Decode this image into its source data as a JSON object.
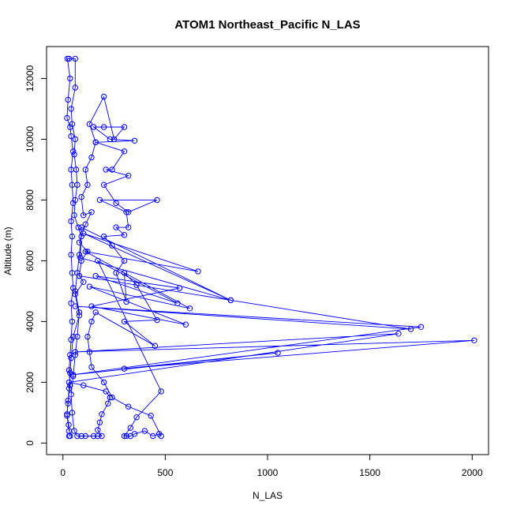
{
  "chart_data": {
    "type": "line",
    "title": "ATOM1 Northeast_Pacific N_LAS",
    "xlabel": "N_LAS",
    "ylabel": "Altitude (m)",
    "xlim": [
      -80,
      2080
    ],
    "ylim": [
      -380,
      13050
    ],
    "x_ticks": [
      0,
      500,
      1000,
      1500,
      2000
    ],
    "x_tick_labels": [
      "0",
      "500",
      "1000",
      "1500",
      "2000"
    ],
    "y_ticks": [
      0,
      2000,
      4000,
      6000,
      8000,
      10000,
      12000
    ],
    "y_tick_labels": [
      "0",
      "2000",
      "4000",
      "6000",
      "8000",
      "10000",
      "12000"
    ],
    "grid": false,
    "series": [
      {
        "color": "#0000ff",
        "marker": "open-circle",
        "points": [
          [
            30,
            230
          ],
          [
            35,
            230
          ],
          [
            28,
            600
          ],
          [
            20,
            950
          ],
          [
            25,
            1400
          ],
          [
            35,
            1900
          ],
          [
            30,
            2400
          ],
          [
            35,
            2900
          ],
          [
            40,
            3400
          ],
          [
            45,
            4000
          ],
          [
            40,
            4600
          ],
          [
            50,
            5100
          ],
          [
            45,
            5600
          ],
          [
            40,
            6200
          ],
          [
            45,
            6800
          ],
          [
            40,
            7300
          ],
          [
            50,
            7900
          ],
          [
            45,
            8500
          ],
          [
            40,
            9000
          ],
          [
            50,
            9600
          ],
          [
            40,
            10100
          ],
          [
            35,
            10400
          ],
          [
            20,
            10700
          ],
          [
            25,
            11300
          ],
          [
            35,
            12000
          ],
          [
            22,
            12650
          ],
          [
            30,
            12650
          ],
          [
            60,
            12650
          ],
          [
            60,
            11700
          ],
          [
            40,
            11000
          ],
          [
            45,
            10500
          ],
          [
            60,
            10000
          ],
          [
            55,
            9500
          ],
          [
            65,
            9000
          ],
          [
            70,
            8500
          ],
          [
            60,
            8000
          ],
          [
            55,
            7500
          ],
          [
            75,
            7100
          ],
          [
            90,
            6800
          ],
          [
            80,
            6200
          ],
          [
            70,
            5600
          ],
          [
            60,
            5000
          ],
          [
            80,
            4300
          ],
          [
            70,
            3500
          ],
          [
            60,
            2900
          ],
          [
            50,
            2200
          ],
          [
            40,
            1600
          ],
          [
            45,
            1000
          ],
          [
            55,
            400
          ],
          [
            70,
            230
          ],
          [
            90,
            230
          ],
          [
            110,
            230
          ],
          [
            150,
            230
          ],
          [
            170,
            230
          ],
          [
            190,
            230
          ],
          [
            170,
            430
          ],
          [
            180,
            680
          ],
          [
            190,
            950
          ],
          [
            220,
            1300
          ],
          [
            230,
            1500
          ],
          [
            210,
            1700
          ],
          [
            100,
            1900
          ],
          [
            30,
            2000
          ],
          [
            1640,
            3600
          ],
          [
            60,
            3000
          ],
          [
            2010,
            3380
          ],
          [
            300,
            2450
          ],
          [
            1050,
            2970
          ],
          [
            50,
            2250
          ],
          [
            1750,
            3820
          ],
          [
            60,
            4500
          ],
          [
            1700,
            3750
          ],
          [
            80,
            5500
          ],
          [
            820,
            4700
          ],
          [
            85,
            6100
          ],
          [
            90,
            7100
          ],
          [
            820,
            4700
          ],
          [
            100,
            6900
          ],
          [
            660,
            5650
          ],
          [
            110,
            6300
          ],
          [
            620,
            4430
          ],
          [
            130,
            5150
          ],
          [
            600,
            3900
          ],
          [
            140,
            4500
          ],
          [
            570,
            5100
          ],
          [
            160,
            5500
          ],
          [
            560,
            4600
          ],
          [
            170,
            6000
          ],
          [
            480,
            1700
          ],
          [
            360,
            850
          ],
          [
            330,
            500
          ],
          [
            300,
            230
          ],
          [
            310,
            230
          ],
          [
            330,
            230
          ],
          [
            350,
            300
          ],
          [
            400,
            400
          ],
          [
            440,
            230
          ],
          [
            470,
            300
          ],
          [
            480,
            230
          ],
          [
            430,
            900
          ],
          [
            320,
            1200
          ],
          [
            240,
            1500
          ],
          [
            200,
            2000
          ],
          [
            140,
            2500
          ],
          [
            130,
            3000
          ],
          [
            120,
            3500
          ],
          [
            140,
            4000
          ],
          [
            160,
            4300
          ],
          [
            450,
            3200
          ],
          [
            300,
            4000
          ],
          [
            460,
            4050
          ],
          [
            360,
            5200
          ],
          [
            300,
            5600
          ],
          [
            310,
            4650
          ],
          [
            260,
            5600
          ],
          [
            300,
            6000
          ],
          [
            240,
            6500
          ],
          [
            200,
            6800
          ],
          [
            300,
            6850
          ],
          [
            260,
            7100
          ],
          [
            320,
            7100
          ],
          [
            310,
            7600
          ],
          [
            180,
            8000
          ],
          [
            460,
            8000
          ],
          [
            320,
            7600
          ],
          [
            260,
            7900
          ],
          [
            200,
            8500
          ],
          [
            320,
            8800
          ],
          [
            210,
            9000
          ],
          [
            240,
            9000
          ],
          [
            300,
            9600
          ],
          [
            160,
            9900
          ],
          [
            350,
            9950
          ],
          [
            230,
            10000
          ],
          [
            150,
            10400
          ],
          [
            200,
            10400
          ],
          [
            300,
            10400
          ],
          [
            250,
            10000
          ],
          [
            200,
            11400
          ],
          [
            130,
            10500
          ],
          [
            160,
            9900
          ],
          [
            140,
            9400
          ],
          [
            110,
            9000
          ],
          [
            120,
            8500
          ],
          [
            90,
            8100
          ],
          [
            100,
            7500
          ],
          [
            140,
            7600
          ],
          [
            110,
            7200
          ],
          [
            80,
            6600
          ],
          [
            120,
            6300
          ],
          [
            90,
            6000
          ],
          [
            80,
            5500
          ],
          [
            100,
            5300
          ],
          [
            60,
            4900
          ],
          [
            80,
            4200
          ],
          [
            50,
            3500
          ],
          [
            40,
            2800
          ],
          [
            35,
            2300
          ],
          [
            30,
            1800
          ],
          [
            25,
            1300
          ],
          [
            20,
            900
          ],
          [
            30,
            400
          ]
        ]
      }
    ]
  }
}
